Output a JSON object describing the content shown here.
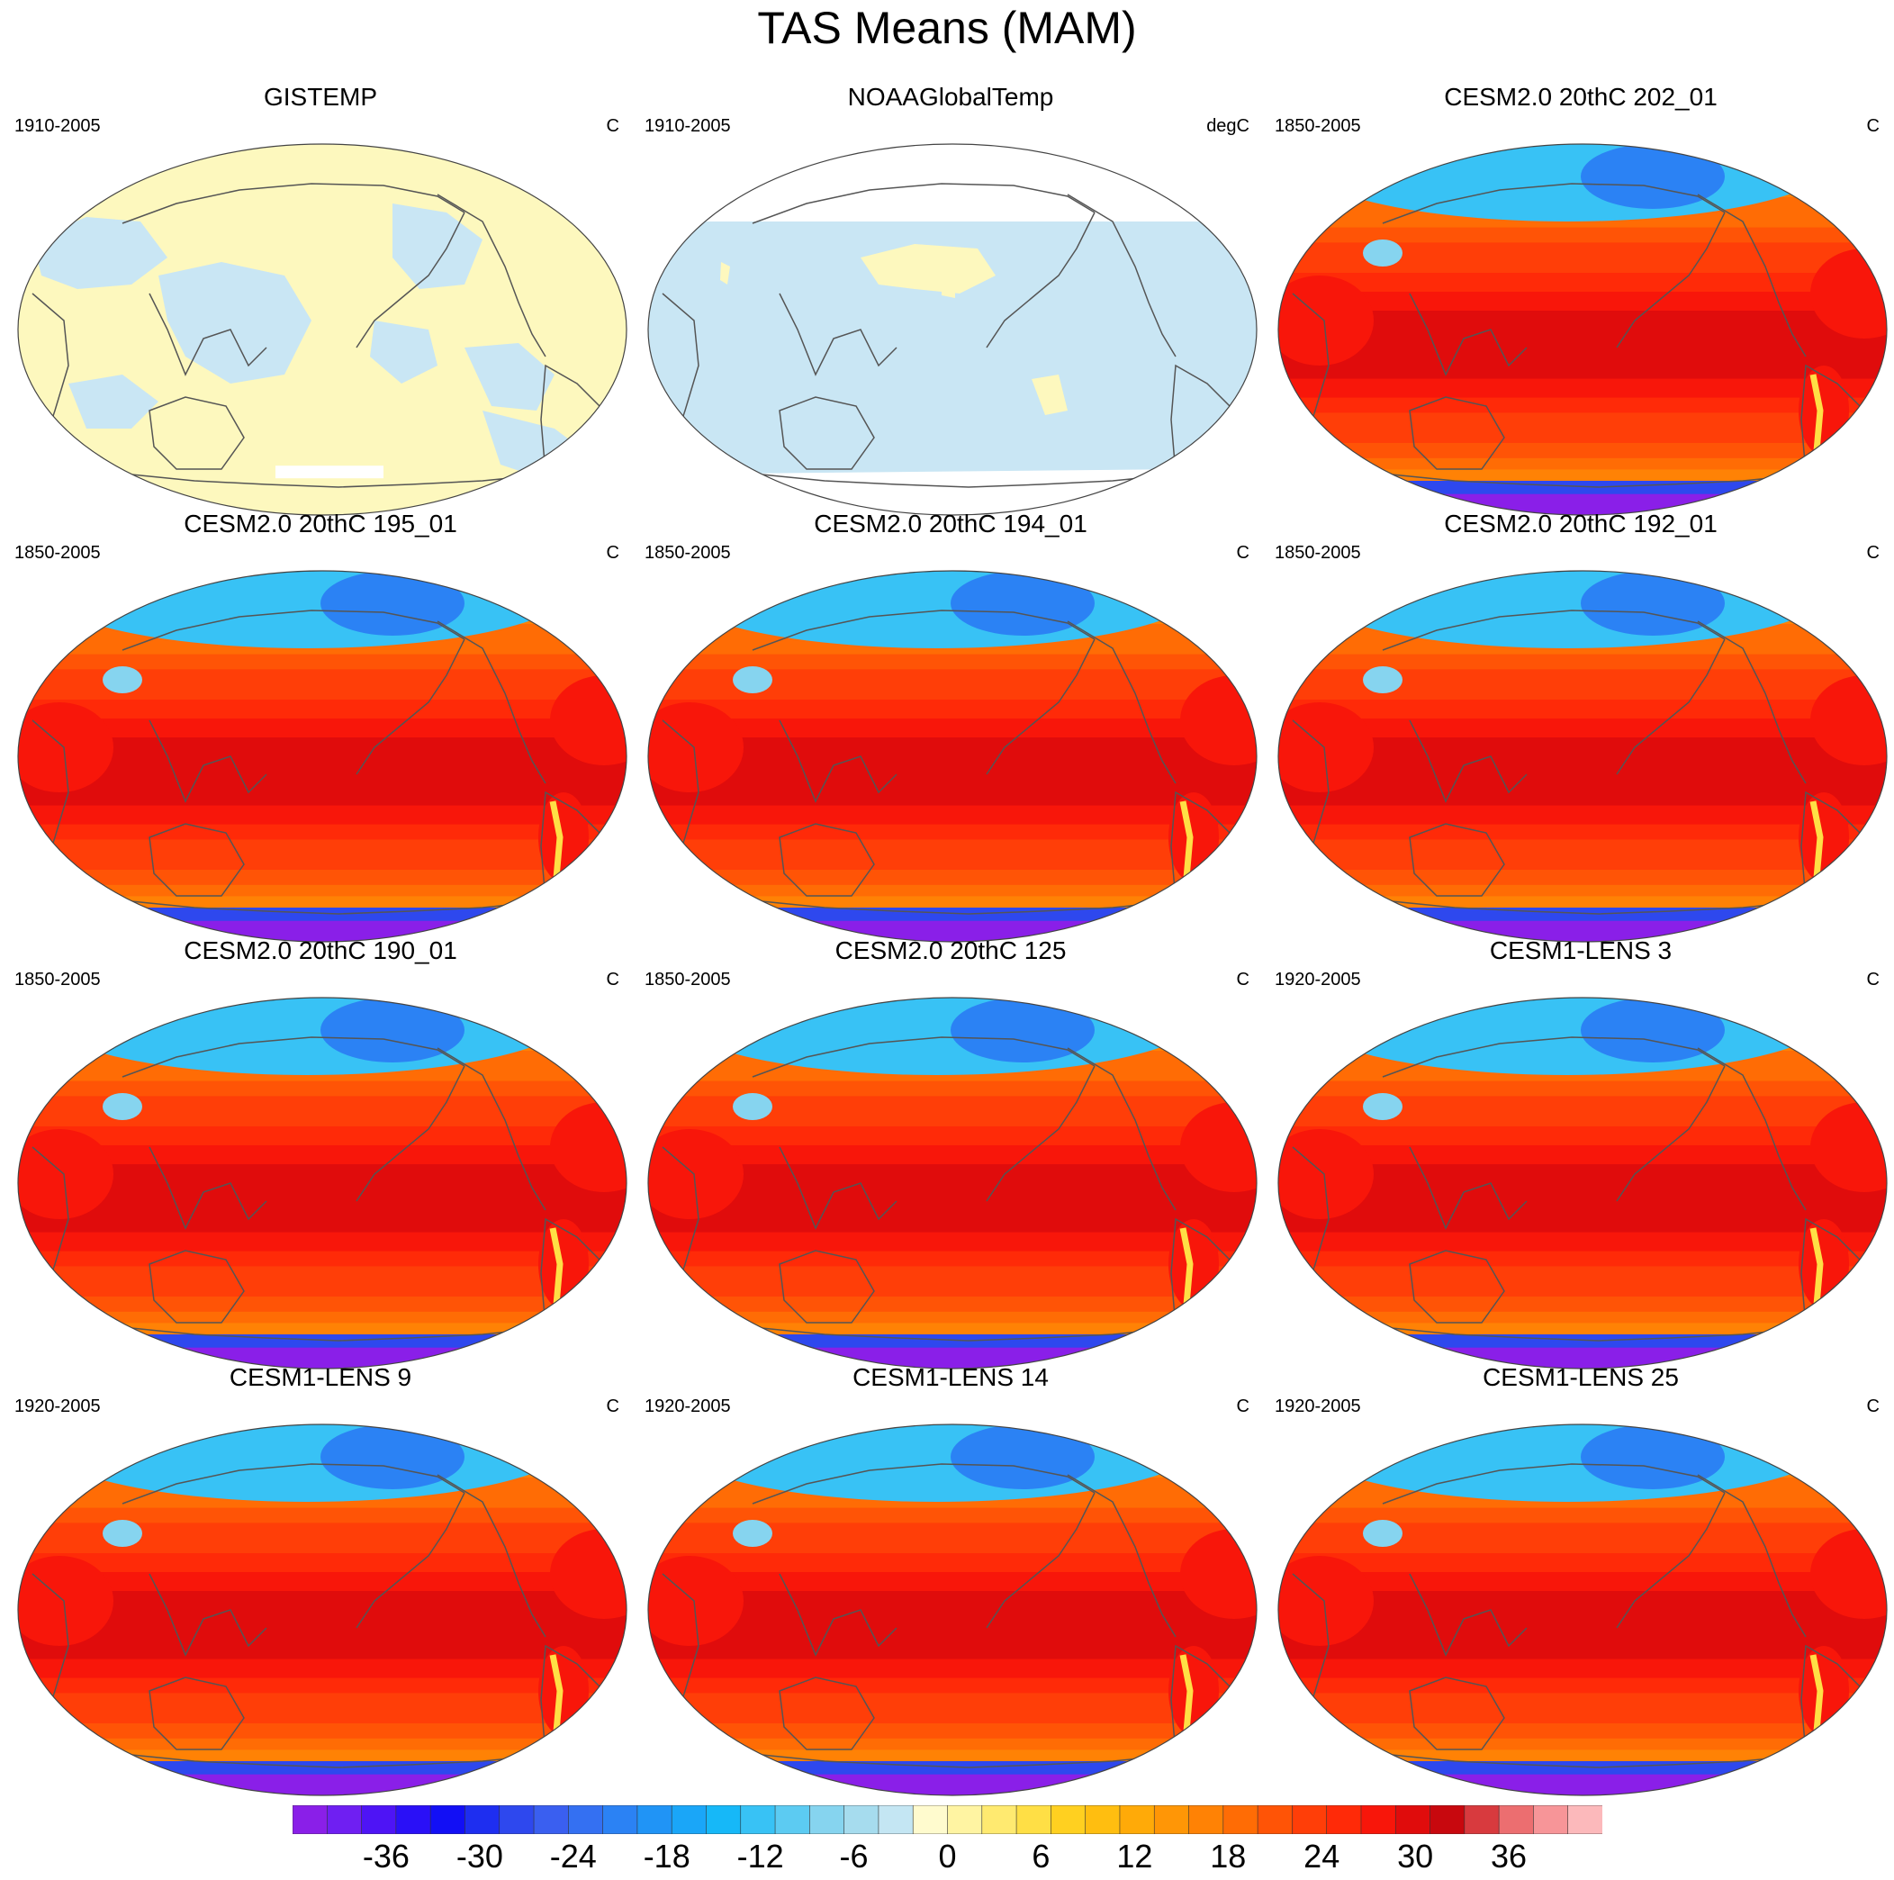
{
  "figure": {
    "title": "TAS Means (MAM)"
  },
  "panels": [
    {
      "title": "GISTEMP",
      "period": "1910-2005",
      "units": "C",
      "style": "obs"
    },
    {
      "title": "NOAAGlobalTemp",
      "period": "1910-2005",
      "units": "degC",
      "style": "obs2"
    },
    {
      "title": "CESM2.0 20thC 202_01",
      "period": "1850-2005",
      "units": "C",
      "style": "model"
    },
    {
      "title": "CESM2.0 20thC 195_01",
      "period": "1850-2005",
      "units": "C",
      "style": "model"
    },
    {
      "title": "CESM2.0 20thC 194_01",
      "period": "1850-2005",
      "units": "C",
      "style": "model"
    },
    {
      "title": "CESM2.0 20thC 192_01",
      "period": "1850-2005",
      "units": "C",
      "style": "model"
    },
    {
      "title": "CESM2.0 20thC 190_01",
      "period": "1850-2005",
      "units": "C",
      "style": "model"
    },
    {
      "title": "CESM2.0 20thC 125",
      "period": "1850-2005",
      "units": "C",
      "style": "model"
    },
    {
      "title": "CESM1-LENS 3",
      "period": "1920-2005",
      "units": "C",
      "style": "model"
    },
    {
      "title": "CESM1-LENS 9",
      "period": "1920-2005",
      "units": "C",
      "style": "model"
    },
    {
      "title": "CESM1-LENS 14",
      "period": "1920-2005",
      "units": "C",
      "style": "model"
    },
    {
      "title": "CESM1-LENS 25",
      "period": "1920-2005",
      "units": "C",
      "style": "model"
    }
  ],
  "colorbar": {
    "min": -42,
    "max": 42,
    "step": 2,
    "labels": [
      "-36",
      "-30",
      "-24",
      "-18",
      "-12",
      "-6",
      "0",
      "6",
      "12",
      "18",
      "24",
      "30",
      "36"
    ],
    "label_values": [
      -36,
      -30,
      -24,
      -18,
      -12,
      -6,
      0,
      6,
      12,
      18,
      24,
      30,
      36
    ],
    "colors": [
      "#8a1fe8",
      "#6f1ff2",
      "#4e14f5",
      "#2a10f7",
      "#120ff5",
      "#1e2ef0",
      "#2e48ee",
      "#3a5ff0",
      "#3470f2",
      "#2b82f4",
      "#2094f6",
      "#1aa6f8",
      "#16b8f8",
      "#38c2f5",
      "#5ccbf2",
      "#86d4ef",
      "#a6dcee",
      "#c4e6f3",
      "#fffbce",
      "#fff4a2",
      "#ffea70",
      "#ffdf45",
      "#ffd020",
      "#ffbe10",
      "#ffaa08",
      "#ff9606",
      "#ff8205",
      "#ff6c05",
      "#ff5406",
      "#ff3e08",
      "#ff2a08",
      "#f8160a",
      "#e00c0c",
      "#c8080e",
      "#d83a3e",
      "#ec6e70",
      "#f79598",
      "#fcb9bb"
    ]
  },
  "palette": {
    "obs_light_blue": "#c9e6f4",
    "obs_light_yellow": "#fdf8be",
    "missing": "#ffffff",
    "coast": "#555555",
    "arctic_blue": "#55a8f0",
    "antarctic_purple": "#8a1fe8"
  }
}
